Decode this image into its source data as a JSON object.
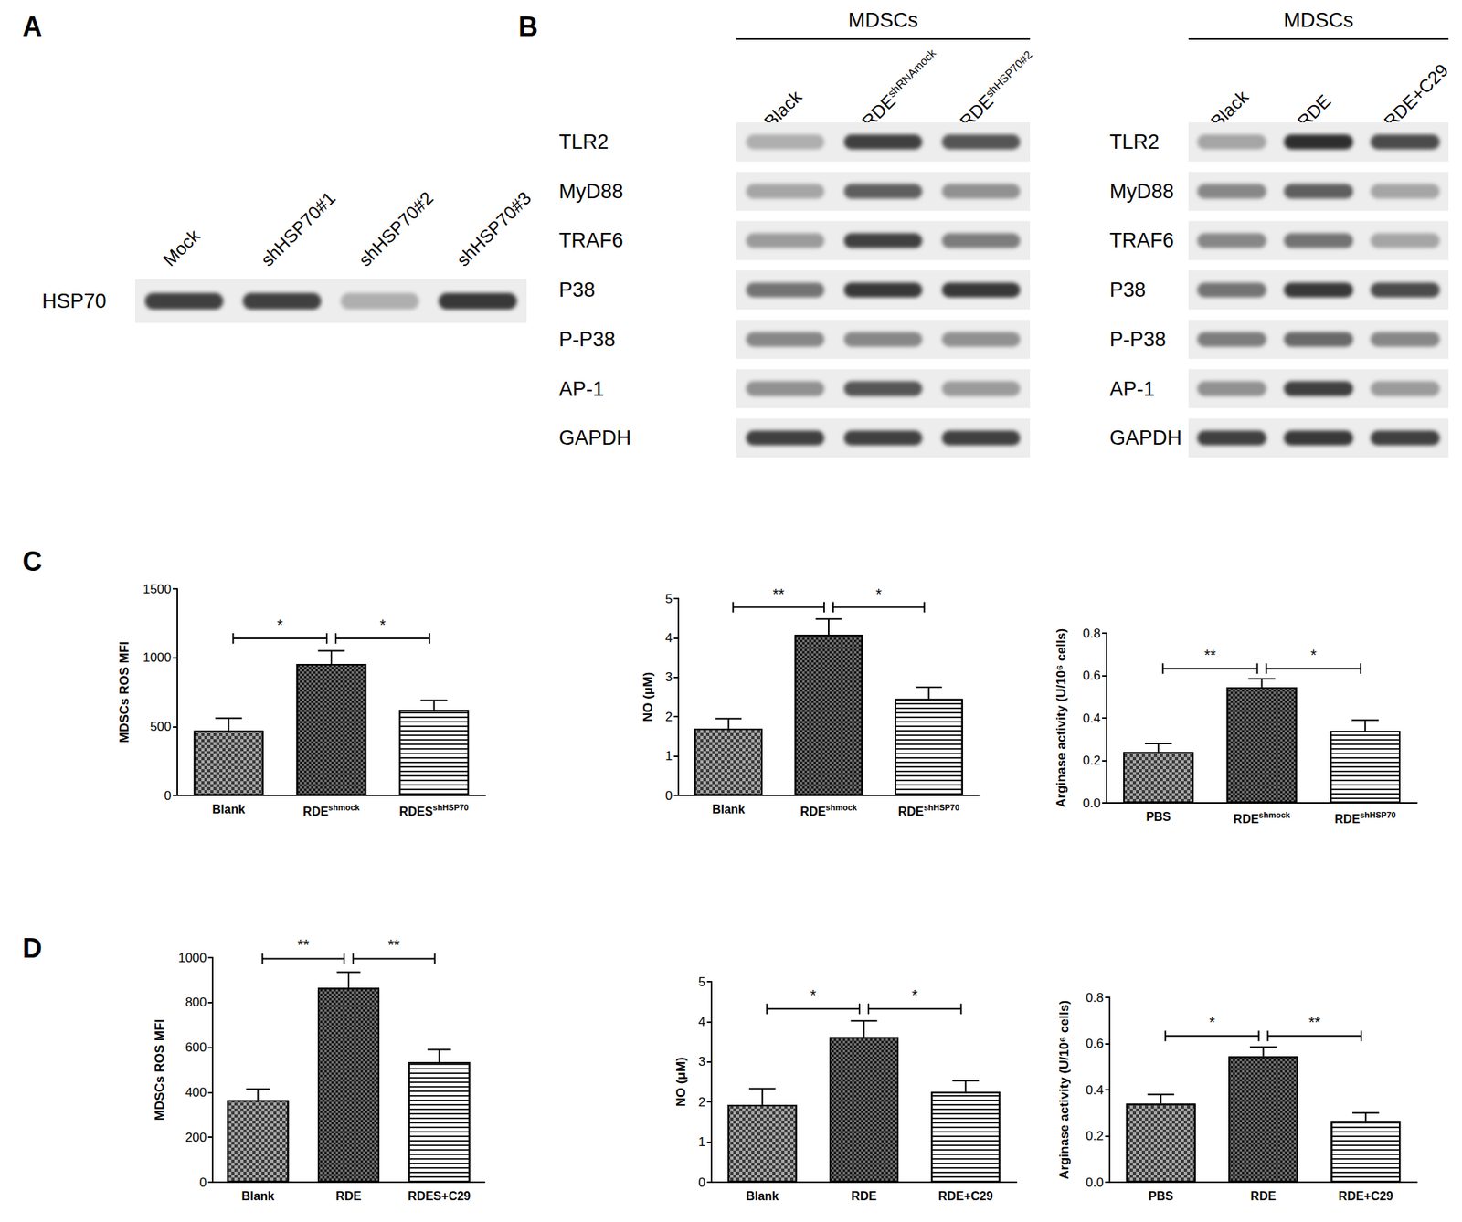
{
  "figure": {
    "panel_letters": [
      "A",
      "B",
      "C",
      "D"
    ]
  },
  "blots": [
    {
      "lanes": [
        {
          "text": "Mock"
        },
        {
          "text": "shHSP70#1"
        },
        {
          "text": "shHSP70#2"
        },
        {
          "text": "shHSP70#3"
        }
      ],
      "rows": [
        {
          "label": "HSP70",
          "band_intensity": [
            0.85,
            0.85,
            0.3,
            0.9
          ]
        }
      ]
    },
    {
      "header": "MDSCs",
      "lanes": [
        {
          "text": "Black"
        },
        {
          "text": "RDE",
          "sup": "shRNAmock"
        },
        {
          "text": "RDE",
          "sup": "shHSP70#2"
        }
      ],
      "rows": [
        {
          "label": "TLR2",
          "band_intensity": [
            0.3,
            0.85,
            0.75
          ]
        },
        {
          "label": "MyD88",
          "band_intensity": [
            0.35,
            0.7,
            0.45
          ]
        },
        {
          "label": "TRAF6",
          "band_intensity": [
            0.4,
            0.85,
            0.55
          ]
        },
        {
          "label": "P38",
          "band_intensity": [
            0.6,
            0.9,
            0.9
          ]
        },
        {
          "label": "P-P38",
          "band_intensity": [
            0.5,
            0.5,
            0.45
          ]
        },
        {
          "label": "AP-1",
          "band_intensity": [
            0.45,
            0.75,
            0.4
          ]
        },
        {
          "label": "GAPDH",
          "band_intensity": [
            0.85,
            0.85,
            0.85
          ]
        }
      ]
    },
    {
      "header": "MDSCs",
      "lanes": [
        {
          "text": "Black"
        },
        {
          "text": "RDE"
        },
        {
          "text": "RDE+C29"
        }
      ],
      "rows": [
        {
          "label": "TLR2",
          "band_intensity": [
            0.35,
            0.95,
            0.8
          ]
        },
        {
          "label": "MyD88",
          "band_intensity": [
            0.5,
            0.7,
            0.35
          ]
        },
        {
          "label": "TRAF6",
          "band_intensity": [
            0.5,
            0.6,
            0.35
          ]
        },
        {
          "label": "P38",
          "band_intensity": [
            0.6,
            0.9,
            0.8
          ]
        },
        {
          "label": "P-P38",
          "band_intensity": [
            0.55,
            0.65,
            0.5
          ]
        },
        {
          "label": "AP-1",
          "band_intensity": [
            0.45,
            0.85,
            0.4
          ]
        },
        {
          "label": "GAPDH",
          "band_intensity": [
            0.85,
            0.9,
            0.85
          ]
        }
      ]
    }
  ],
  "chart_data": [
    {
      "type": "bar",
      "ylabel": "MDSCs ROS MFI",
      "categories": [
        "Blank",
        "RDEshmock",
        "RDESshHSP70"
      ],
      "category_superscripts": [
        null,
        "shmock",
        "shHSP70"
      ],
      "values": [
        470,
        955,
        620
      ],
      "errors": [
        90,
        95,
        70
      ],
      "colors": [
        "#a6a6a6",
        "#6e6e6e",
        "#ffffff"
      ],
      "ylim": [
        0,
        1500
      ],
      "yticks": [
        0,
        500,
        1000,
        1500
      ],
      "annotations": [
        {
          "from": 0,
          "to": 1,
          "label": "*"
        },
        {
          "from": 1,
          "to": 2,
          "label": "*"
        }
      ]
    },
    {
      "type": "bar",
      "ylabel": "NO (μM)",
      "categories": [
        "Blank",
        "RDEshmock",
        "RDEshHSP70"
      ],
      "category_superscripts": [
        null,
        "shmock",
        "shHSP70"
      ],
      "values": [
        1.7,
        4.08,
        2.45
      ],
      "errors": [
        0.25,
        0.4,
        0.3
      ],
      "colors": [
        "#a6a6a6",
        "#6e6e6e",
        "#ffffff"
      ],
      "ylim": [
        0,
        5
      ],
      "yticks": [
        0,
        1,
        2,
        3,
        4,
        5
      ],
      "annotations": [
        {
          "from": 0,
          "to": 1,
          "label": "**"
        },
        {
          "from": 1,
          "to": 2,
          "label": "*"
        }
      ]
    },
    {
      "type": "bar",
      "ylabel": "Arginase activity (U/10⁶ cells)",
      "categories": [
        "PBS",
        "RDEshmock",
        "RDEshHSP70"
      ],
      "category_superscripts": [
        null,
        "shmock",
        "shHSP70"
      ],
      "values": [
        0.24,
        0.545,
        0.34
      ],
      "errors": [
        0.04,
        0.04,
        0.05
      ],
      "colors": [
        "#a6a6a6",
        "#6e6e6e",
        "#ffffff"
      ],
      "ylim": [
        0,
        0.8
      ],
      "yticks": [
        {
          "value": 0,
          "label": "0.0"
        },
        {
          "value": 0.2,
          "label": "0.2"
        },
        {
          "value": 0.4,
          "label": "0.4"
        },
        {
          "value": 0.6,
          "label": "0.6"
        },
        {
          "value": 0.8,
          "label": "0.8"
        }
      ],
      "annotations": [
        {
          "from": 0,
          "to": 1,
          "label": "**"
        },
        {
          "from": 1,
          "to": 2,
          "label": "*"
        }
      ]
    },
    {
      "type": "bar",
      "ylabel": "MDSCs ROS MFI",
      "categories": [
        "Blank",
        "RDE",
        "RDES+C29"
      ],
      "values": [
        365,
        865,
        535
      ],
      "errors": [
        50,
        70,
        55
      ],
      "colors": [
        "#a6a6a6",
        "#6e6e6e",
        "#ffffff"
      ],
      "ylim": [
        0,
        1000
      ],
      "yticks": [
        0,
        200,
        400,
        600,
        800,
        1000
      ],
      "annotations": [
        {
          "from": 0,
          "to": 1,
          "label": "**"
        },
        {
          "from": 1,
          "to": 2,
          "label": "**"
        }
      ]
    },
    {
      "type": "bar",
      "ylabel": "NO (μM)",
      "categories": [
        "Blank",
        "RDE",
        "RDE+C29"
      ],
      "values": [
        1.93,
        3.62,
        2.25
      ],
      "errors": [
        0.4,
        0.4,
        0.28
      ],
      "colors": [
        "#a6a6a6",
        "#6e6e6e",
        "#ffffff"
      ],
      "ylim": [
        0,
        5
      ],
      "yticks": [
        0,
        1,
        2,
        3,
        4,
        5
      ],
      "annotations": [
        {
          "from": 0,
          "to": 1,
          "label": "*"
        },
        {
          "from": 1,
          "to": 2,
          "label": "*"
        }
      ]
    },
    {
      "type": "bar",
      "ylabel": "Arginase activity (U/10⁶ cells)",
      "categories": [
        "PBS",
        "RDE",
        "RDE+C29"
      ],
      "values": [
        0.34,
        0.545,
        0.265
      ],
      "errors": [
        0.04,
        0.04,
        0.035
      ],
      "colors": [
        "#a6a6a6",
        "#6e6e6e",
        "#ffffff"
      ],
      "ylim": [
        0,
        0.8
      ],
      "yticks": [
        {
          "value": 0,
          "label": "0.0"
        },
        {
          "value": 0.2,
          "label": "0.2"
        },
        {
          "value": 0.4,
          "label": "0.4"
        },
        {
          "value": 0.6,
          "label": "0.6"
        },
        {
          "value": 0.8,
          "label": "0.8"
        }
      ],
      "annotations": [
        {
          "from": 0,
          "to": 1,
          "label": "*"
        },
        {
          "from": 1,
          "to": 2,
          "label": "**"
        }
      ]
    }
  ]
}
